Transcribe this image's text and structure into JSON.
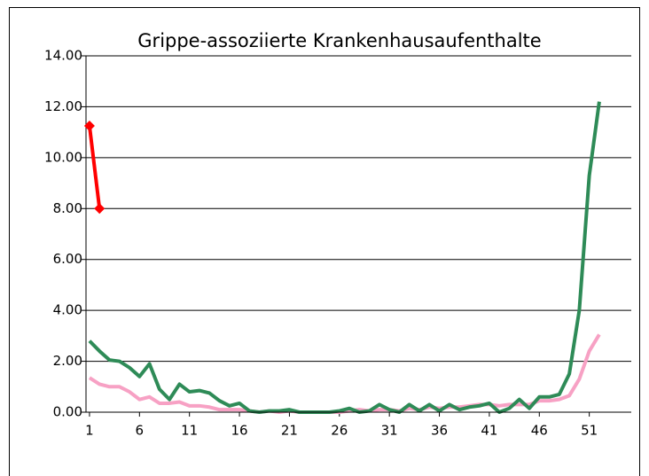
{
  "chart_data": {
    "type": "line",
    "title": "Grippe-assoziierte Krankenhausaufenthalte",
    "x": [
      1,
      2,
      3,
      4,
      5,
      6,
      7,
      8,
      9,
      10,
      11,
      12,
      13,
      14,
      15,
      16,
      17,
      18,
      19,
      20,
      21,
      22,
      23,
      24,
      25,
      26,
      27,
      28,
      29,
      30,
      31,
      32,
      33,
      34,
      35,
      36,
      37,
      38,
      39,
      40,
      41,
      42,
      43,
      44,
      45,
      46,
      47,
      48,
      49,
      50,
      51,
      52
    ],
    "xlim": [
      0.65,
      55.2
    ],
    "xticks": [
      1,
      6,
      11,
      16,
      21,
      26,
      31,
      36,
      41,
      46,
      51
    ],
    "ylim": [
      0,
      14
    ],
    "yticks": [
      {
        "value": 0,
        "label": "0.00"
      },
      {
        "value": 2,
        "label": "2.00"
      },
      {
        "value": 4,
        "label": "4.00"
      },
      {
        "value": 6,
        "label": "6.00"
      },
      {
        "value": 8,
        "label": "8.00"
      },
      {
        "value": 10,
        "label": "10.00"
      },
      {
        "value": 12,
        "label": "12.00"
      },
      {
        "value": 14,
        "label": "14.00"
      }
    ],
    "grid": true,
    "series": [
      {
        "color": "#f7a1c4",
        "markers": false,
        "values": [
          1.35,
          1.1,
          1.0,
          1.0,
          0.8,
          0.5,
          0.6,
          0.35,
          0.35,
          0.4,
          0.25,
          0.25,
          0.2,
          0.1,
          0.1,
          0.1,
          0.05,
          0.0,
          0.05,
          0.0,
          0.05,
          0.0,
          0.0,
          0.0,
          0.0,
          0.0,
          0.05,
          0.1,
          0.05,
          0.1,
          0.1,
          0.05,
          0.15,
          0.1,
          0.2,
          0.15,
          0.2,
          0.2,
          0.25,
          0.3,
          0.3,
          0.25,
          0.3,
          0.3,
          0.3,
          0.45,
          0.45,
          0.5,
          0.65,
          1.3,
          2.4,
          3.05
        ]
      },
      {
        "color": "#2e8b57",
        "markers": false,
        "values": [
          2.8,
          2.4,
          2.05,
          2.0,
          1.75,
          1.4,
          1.9,
          0.9,
          0.5,
          1.1,
          0.8,
          0.85,
          0.75,
          0.45,
          0.25,
          0.35,
          0.05,
          0.0,
          0.05,
          0.05,
          0.1,
          0.0,
          0.0,
          0.0,
          0.0,
          0.05,
          0.15,
          0.0,
          0.05,
          0.3,
          0.1,
          0.0,
          0.3,
          0.05,
          0.3,
          0.05,
          0.3,
          0.1,
          0.2,
          0.25,
          0.35,
          0.0,
          0.15,
          0.5,
          0.15,
          0.6,
          0.6,
          0.7,
          1.5,
          4.0,
          9.3,
          12.2
        ]
      },
      {
        "color": "#ff0000",
        "markers": true,
        "values": [
          11.25,
          8.0,
          null,
          null,
          null,
          null,
          null,
          null,
          null,
          null,
          null,
          null,
          null,
          null,
          null,
          null,
          null,
          null,
          null,
          null,
          null,
          null,
          null,
          null,
          null,
          null,
          null,
          null,
          null,
          null,
          null,
          null,
          null,
          null,
          null,
          null,
          null,
          null,
          null,
          null,
          null,
          null,
          null,
          null,
          null,
          null,
          null,
          null,
          null,
          null,
          null,
          null
        ]
      }
    ]
  }
}
